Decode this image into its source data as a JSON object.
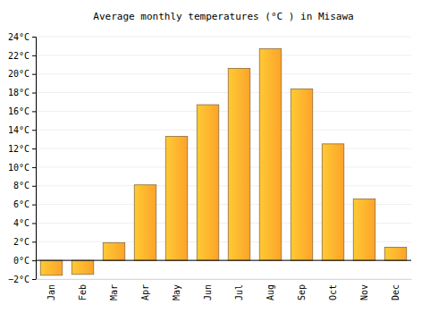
{
  "chart_data": {
    "type": "bar",
    "title": "Average monthly temperatures (°C ) in Misawa",
    "categories": [
      "Jan",
      "Feb",
      "Mar",
      "Apr",
      "May",
      "Jun",
      "Jul",
      "Aug",
      "Sep",
      "Oct",
      "Nov",
      "Dec"
    ],
    "values": [
      -1.6,
      -1.5,
      1.9,
      8.1,
      13.3,
      16.7,
      20.6,
      22.7,
      18.4,
      12.5,
      6.6,
      1.4
    ],
    "color": "#fca32a",
    "ylim": [
      -2,
      24
    ],
    "yticks": [
      {
        "value": -2,
        "label": "−2°C"
      },
      {
        "value": 0,
        "label": "0°C"
      },
      {
        "value": 2,
        "label": "2°C"
      },
      {
        "value": 4,
        "label": "4°C"
      },
      {
        "value": 6,
        "label": "6°C"
      },
      {
        "value": 8,
        "label": "8°C"
      },
      {
        "value": 10,
        "label": "10°C"
      },
      {
        "value": 12,
        "label": "12°C"
      },
      {
        "value": 14,
        "label": "14°C"
      },
      {
        "value": 16,
        "label": "16°C"
      },
      {
        "value": 18,
        "label": "18°C"
      },
      {
        "value": 20,
        "label": "20°C"
      },
      {
        "value": 22,
        "label": "22°C"
      },
      {
        "value": 24,
        "label": "24°C"
      }
    ],
    "grid": true
  }
}
